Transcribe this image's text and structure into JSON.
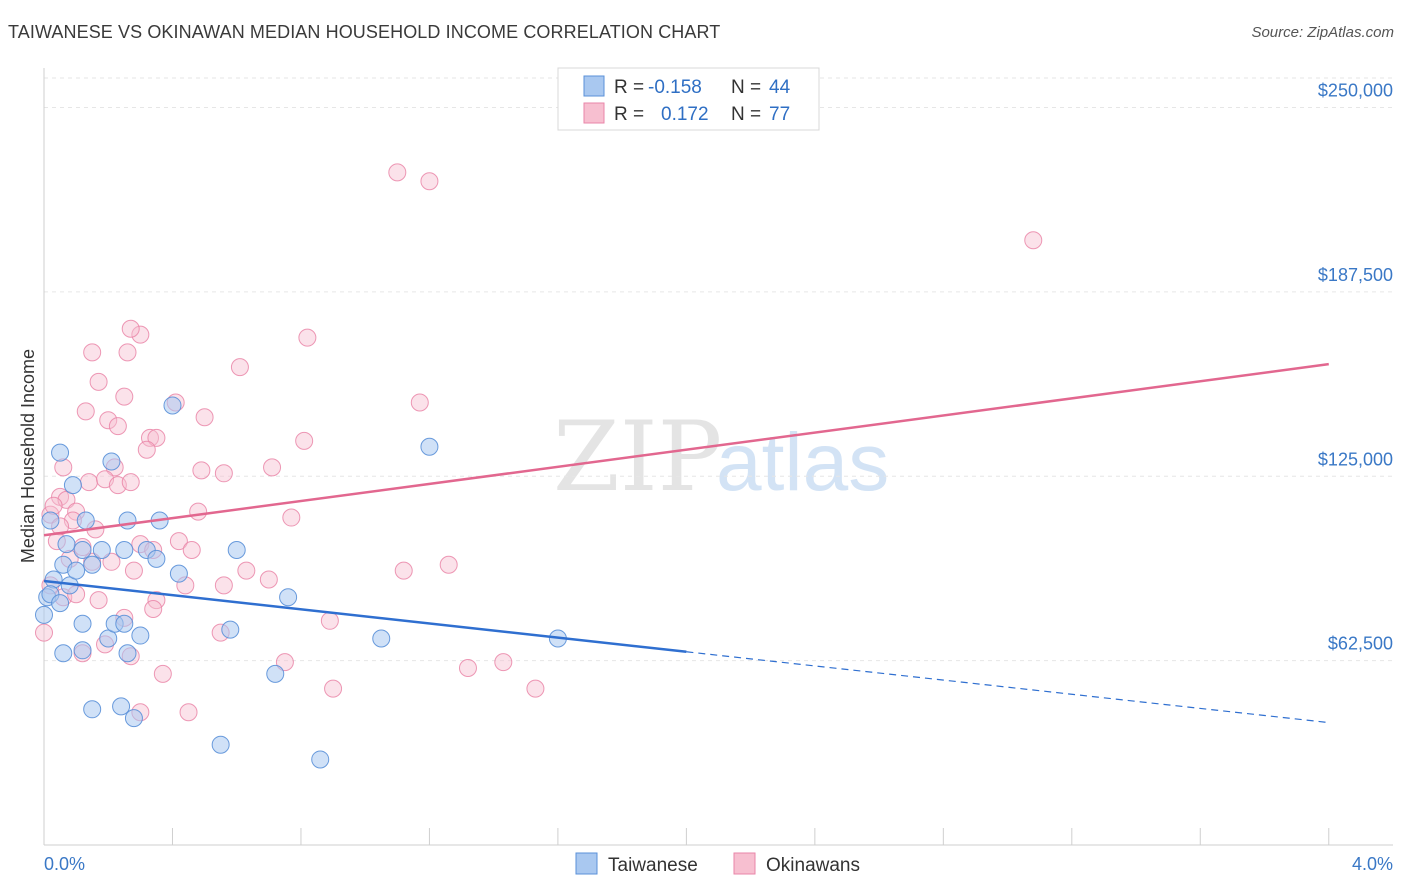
{
  "title": "TAIWANESE VS OKINAWAN MEDIAN HOUSEHOLD INCOME CORRELATION CHART",
  "source": "Source: ZipAtlas.com",
  "watermark": {
    "zip": "ZIP",
    "atlas": "atlas"
  },
  "colors": {
    "taiwanese_fill": "#a9c8f0",
    "taiwanese_stroke": "#5a90d8",
    "taiwanese_line": "#2f6fd0",
    "okinawan_fill": "#f7bfd0",
    "okinawan_stroke": "#ea86a8",
    "okinawan_line": "#e2678f",
    "accent": "#3a78c6"
  },
  "legend": {
    "rows": [
      {
        "r_label": "R =",
        "r_value": "-0.158",
        "n_label": "N =",
        "n_value": "44"
      },
      {
        "r_label": "R =",
        "r_value": "0.172",
        "n_label": "N =",
        "n_value": "77"
      }
    ]
  },
  "chart_data": {
    "type": "scatter",
    "title": "TAIWANESE VS OKINAWAN MEDIAN HOUSEHOLD INCOME CORRELATION CHART",
    "xlabel": "",
    "ylabel": "Median Household Income",
    "xlim": [
      0,
      4.2
    ],
    "ylim": [
      0,
      260000
    ],
    "x_tick_labels": [
      "0.0%",
      "4.0%"
    ],
    "y_ticks": [
      62500,
      125000,
      187500,
      250000
    ],
    "y_tick_labels": [
      "$62,500",
      "$125,000",
      "$187,500",
      "$250,000"
    ],
    "grid": true,
    "series": [
      {
        "name": "Taiwanese",
        "r": -0.158,
        "n": 44,
        "trend": {
          "x0": 0.0,
          "y0": 89500,
          "x1": 2.0,
          "y1": 65500,
          "dash_x1": 4.0,
          "dash_y1": 41500
        },
        "points": [
          [
            0.02,
            110000
          ],
          [
            0.05,
            133000
          ],
          [
            0.09,
            122000
          ],
          [
            0.13,
            110000
          ],
          [
            0.21,
            130000
          ],
          [
            0.26,
            110000
          ],
          [
            0.36,
            110000
          ],
          [
            0.4,
            149000
          ],
          [
            0.01,
            84000
          ],
          [
            0.03,
            90000
          ],
          [
            0.06,
            95000
          ],
          [
            0.08,
            88000
          ],
          [
            0.12,
            100000
          ],
          [
            0.15,
            95000
          ],
          [
            0.25,
            100000
          ],
          [
            0.32,
            100000
          ],
          [
            0.42,
            92000
          ],
          [
            0.6,
            100000
          ],
          [
            0.76,
            84000
          ],
          [
            0.02,
            85000
          ],
          [
            0.05,
            82000
          ],
          [
            0.12,
            75000
          ],
          [
            0.2,
            70000
          ],
          [
            0.22,
            75000
          ],
          [
            0.25,
            75000
          ],
          [
            0.3,
            71000
          ],
          [
            0.58,
            73000
          ],
          [
            0.06,
            65000
          ],
          [
            0.12,
            66000
          ],
          [
            0.26,
            65000
          ],
          [
            0.72,
            58000
          ],
          [
            1.05,
            70000
          ],
          [
            1.2,
            135000
          ],
          [
            1.6,
            70000
          ],
          [
            0.15,
            46000
          ],
          [
            0.24,
            47000
          ],
          [
            0.28,
            43000
          ],
          [
            0.55,
            34000
          ],
          [
            0.86,
            29000
          ],
          [
            0.0,
            78000
          ],
          [
            0.07,
            102000
          ],
          [
            0.18,
            100000
          ],
          [
            0.35,
            97000
          ],
          [
            0.1,
            93000
          ]
        ]
      },
      {
        "name": "Okinawans",
        "r": 0.172,
        "n": 77,
        "trend": {
          "x0": 0.0,
          "y0": 105000,
          "x1": 4.0,
          "y1": 163000
        },
        "points": [
          [
            1.1,
            228000
          ],
          [
            1.2,
            225000
          ],
          [
            3.08,
            205000
          ],
          [
            0.15,
            167000
          ],
          [
            0.26,
            167000
          ],
          [
            0.3,
            173000
          ],
          [
            0.27,
            175000
          ],
          [
            0.61,
            162000
          ],
          [
            0.82,
            172000
          ],
          [
            0.17,
            157000
          ],
          [
            0.25,
            152000
          ],
          [
            0.41,
            150000
          ],
          [
            0.13,
            147000
          ],
          [
            0.2,
            144000
          ],
          [
            0.23,
            142000
          ],
          [
            0.5,
            145000
          ],
          [
            1.17,
            150000
          ],
          [
            0.33,
            138000
          ],
          [
            0.35,
            138000
          ],
          [
            0.32,
            134000
          ],
          [
            0.81,
            137000
          ],
          [
            0.06,
            128000
          ],
          [
            0.22,
            128000
          ],
          [
            0.49,
            127000
          ],
          [
            0.56,
            126000
          ],
          [
            0.71,
            128000
          ],
          [
            0.14,
            123000
          ],
          [
            0.19,
            124000
          ],
          [
            0.23,
            122000
          ],
          [
            0.27,
            123000
          ],
          [
            0.05,
            118000
          ],
          [
            0.07,
            117000
          ],
          [
            0.1,
            113000
          ],
          [
            0.02,
            112000
          ],
          [
            0.09,
            110000
          ],
          [
            0.05,
            108000
          ],
          [
            0.16,
            107000
          ],
          [
            0.48,
            113000
          ],
          [
            0.77,
            111000
          ],
          [
            0.04,
            103000
          ],
          [
            0.12,
            101000
          ],
          [
            0.3,
            102000
          ],
          [
            0.34,
            100000
          ],
          [
            0.42,
            103000
          ],
          [
            0.46,
            100000
          ],
          [
            0.08,
            97000
          ],
          [
            0.15,
            96000
          ],
          [
            0.21,
            96000
          ],
          [
            0.28,
            93000
          ],
          [
            0.44,
            88000
          ],
          [
            0.56,
            88000
          ],
          [
            0.63,
            93000
          ],
          [
            0.7,
            90000
          ],
          [
            1.12,
            93000
          ],
          [
            1.26,
            95000
          ],
          [
            0.02,
            88000
          ],
          [
            0.06,
            84000
          ],
          [
            0.1,
            85000
          ],
          [
            0.17,
            83000
          ],
          [
            0.25,
            77000
          ],
          [
            0.35,
            83000
          ],
          [
            0.34,
            80000
          ],
          [
            0.55,
            72000
          ],
          [
            0.89,
            76000
          ],
          [
            0.0,
            72000
          ],
          [
            0.19,
            68000
          ],
          [
            0.27,
            64000
          ],
          [
            0.75,
            62000
          ],
          [
            1.32,
            60000
          ],
          [
            1.43,
            62000
          ],
          [
            0.37,
            58000
          ],
          [
            0.9,
            53000
          ],
          [
            1.53,
            53000
          ],
          [
            0.3,
            45000
          ],
          [
            0.45,
            45000
          ],
          [
            0.12,
            65000
          ],
          [
            0.03,
            115000
          ]
        ]
      }
    ]
  },
  "bottom_legend": [
    "Taiwanese",
    "Okinawans"
  ]
}
